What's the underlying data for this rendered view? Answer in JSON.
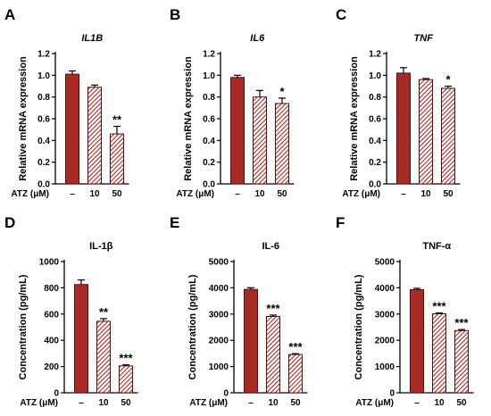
{
  "colors": {
    "bar": "#a72a24",
    "stroke": "#5a0d0a",
    "hatch": "#a72a24"
  },
  "x_axis_label": "ATZ (μM)",
  "chart_data": [
    {
      "type": "bar",
      "panel": "A",
      "title": "IL1B",
      "title_italic": true,
      "ylabel": "Relative mRNA expression",
      "ylim": [
        0,
        1.2
      ],
      "yticks": [
        "0.0",
        "0.2",
        "0.4",
        "0.6",
        "0.8",
        "1.0",
        "1.2"
      ],
      "categories": [
        "–",
        "10",
        "50"
      ],
      "values": [
        1.01,
        0.89,
        0.46
      ],
      "errors": [
        0.03,
        0.02,
        0.07
      ],
      "significance": [
        "",
        "",
        "**"
      ]
    },
    {
      "type": "bar",
      "panel": "B",
      "title": "IL6",
      "title_italic": true,
      "ylabel": "Relative mRNA expression",
      "ylim": [
        0,
        1.2
      ],
      "yticks": [
        "0.0",
        "0.2",
        "0.4",
        "0.6",
        "0.8",
        "1.0",
        "1.2"
      ],
      "categories": [
        "–",
        "10",
        "50"
      ],
      "values": [
        0.98,
        0.8,
        0.74
      ],
      "errors": [
        0.02,
        0.06,
        0.05
      ],
      "significance": [
        "",
        "",
        "*"
      ]
    },
    {
      "type": "bar",
      "panel": "C",
      "title": "TNF",
      "title_italic": true,
      "ylabel": "Relative mRNA expression",
      "ylim": [
        0,
        1.2
      ],
      "yticks": [
        "0.0",
        "0.2",
        "0.4",
        "0.6",
        "0.8",
        "1.0",
        "1.2"
      ],
      "categories": [
        "–",
        "10",
        "50"
      ],
      "values": [
        1.02,
        0.96,
        0.88
      ],
      "errors": [
        0.05,
        0.01,
        0.02
      ],
      "significance": [
        "",
        "",
        "*"
      ]
    },
    {
      "type": "bar",
      "panel": "D",
      "title": "IL-1β",
      "title_italic": false,
      "ylabel": "Concentration (pg/mL)",
      "ylim": [
        0,
        1000
      ],
      "yticks": [
        "0",
        "200",
        "400",
        "600",
        "800",
        "1000"
      ],
      "categories": [
        "–",
        "10",
        "50"
      ],
      "values": [
        825,
        545,
        205
      ],
      "errors": [
        35,
        20,
        8
      ],
      "significance": [
        "",
        "**",
        "***"
      ]
    },
    {
      "type": "bar",
      "panel": "E",
      "title": "IL-6",
      "title_italic": false,
      "ylabel": "Concentration (pg/mL)",
      "ylim": [
        0,
        5000
      ],
      "yticks": [
        "0",
        "1000",
        "2000",
        "3000",
        "4000",
        "5000"
      ],
      "categories": [
        "–",
        "10",
        "50"
      ],
      "values": [
        3940,
        2910,
        1460
      ],
      "errors": [
        60,
        50,
        30
      ],
      "significance": [
        "",
        "***",
        "***"
      ]
    },
    {
      "type": "bar",
      "panel": "F",
      "title": "TNF-α",
      "title_italic": false,
      "ylabel": "Concentration (pg/mL)",
      "ylim": [
        0,
        5000
      ],
      "yticks": [
        "0",
        "1000",
        "2000",
        "3000",
        "4000",
        "5000"
      ],
      "categories": [
        "–",
        "10",
        "50"
      ],
      "values": [
        3930,
        3010,
        2370
      ],
      "errors": [
        50,
        30,
        40
      ],
      "significance": [
        "",
        "***",
        "***"
      ]
    }
  ]
}
